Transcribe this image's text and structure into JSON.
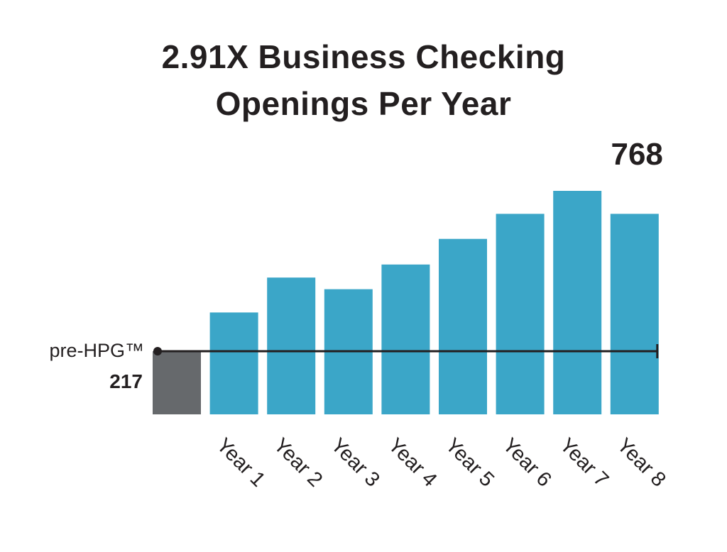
{
  "title_lines": [
    "2.91X Business Checking",
    "Openings Per Year"
  ],
  "baseline": {
    "label": "pre-HPG™",
    "value": 217,
    "value_label": "217",
    "color": "#66696c"
  },
  "peak_label": "768",
  "chart_data": {
    "type": "bar",
    "title": "2.91X Business Checking Openings Per Year",
    "categories": [
      "pre-HPG™",
      "Year 1",
      "Year 2",
      "Year 3",
      "Year 4",
      "Year 5",
      "Year 6",
      "Year 7",
      "Year 8"
    ],
    "values": [
      217,
      350,
      470,
      430,
      515,
      603,
      689,
      768,
      689
    ],
    "bar_colors": [
      "#66696c",
      "#3ba6c8",
      "#3ba6c8",
      "#3ba6c8",
      "#3ba6c8",
      "#3ba6c8",
      "#3ba6c8",
      "#3ba6c8",
      "#3ba6c8"
    ],
    "xlabel": "",
    "ylabel": "",
    "ylim": [
      0,
      768
    ],
    "grid": false,
    "legend": "none",
    "reference_line": {
      "value": 217,
      "color": "#231f20"
    },
    "data_labels": [
      {
        "category": "Year 7",
        "text": "768"
      }
    ]
  }
}
